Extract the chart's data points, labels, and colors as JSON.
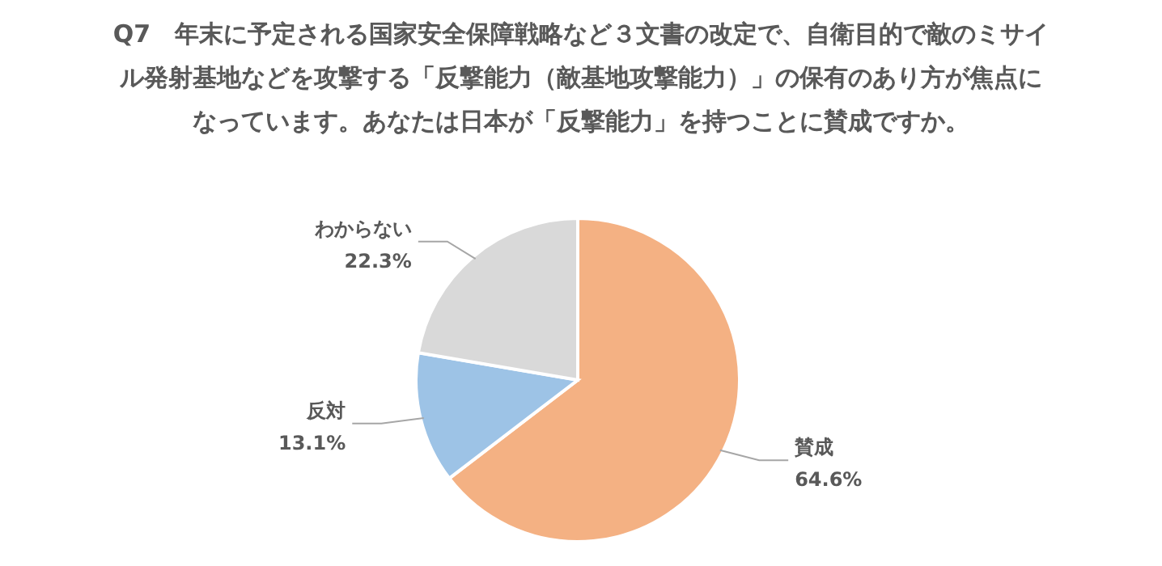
{
  "chart_data": {
    "type": "pie",
    "title": "Q7　年末に予定される国家安全保障戦略など３文書の改定で、自衛目的で敵のミサイル発射基地などを攻撃する「反撃能力（敵基地攻撃能力）」の保有のあり方が焦点になっています。あなたは日本が「反撃能力」を持つことに賛成ですか。",
    "categories": [
      "賛成",
      "反対",
      "わからない"
    ],
    "values": [
      64.6,
      13.1,
      22.3
    ],
    "value_labels": [
      "64.6%",
      "13.1%",
      "22.3%"
    ],
    "colors": [
      "#f4b183",
      "#9dc3e6",
      "#d9d9d9"
    ],
    "legend": false
  }
}
